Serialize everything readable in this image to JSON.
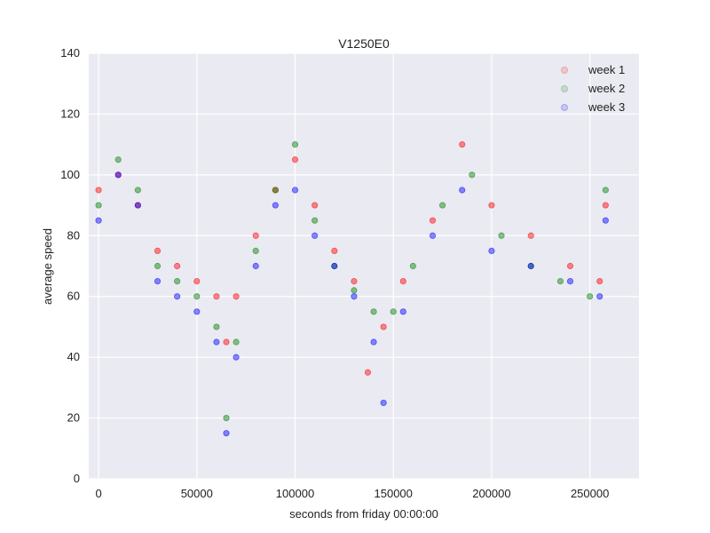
{
  "chart_data": {
    "type": "scatter",
    "title": "V1250E0",
    "xlabel": "seconds from friday 00:00:00",
    "ylabel": "average speed",
    "xlim": [
      -5000,
      275000
    ],
    "ylim": [
      0,
      140
    ],
    "x_ticks": [
      0,
      50000,
      100000,
      150000,
      200000,
      250000
    ],
    "y_ticks": [
      0,
      20,
      40,
      60,
      80,
      100,
      120,
      140
    ],
    "grid": true,
    "legend_position": "top-right",
    "series": [
      {
        "name": "week 1",
        "color": "#ff0000",
        "x": [
          0,
          10000,
          20000,
          30000,
          40000,
          50000,
          60000,
          65000,
          70000,
          80000,
          90000,
          100000,
          110000,
          120000,
          130000,
          137000,
          145000,
          155000,
          170000,
          185000,
          200000,
          220000,
          240000,
          255000,
          258000
        ],
        "y": [
          95,
          100,
          90,
          75,
          70,
          65,
          60,
          45,
          60,
          80,
          95,
          105,
          90,
          75,
          65,
          35,
          50,
          65,
          85,
          110,
          90,
          80,
          70,
          65,
          90
        ]
      },
      {
        "name": "week 2",
        "color": "#008000",
        "x": [
          0,
          10000,
          20000,
          30000,
          40000,
          50000,
          60000,
          65000,
          70000,
          80000,
          90000,
          100000,
          110000,
          120000,
          130000,
          140000,
          150000,
          160000,
          175000,
          190000,
          205000,
          220000,
          235000,
          250000,
          258000
        ],
        "y": [
          90,
          105,
          95,
          70,
          65,
          60,
          50,
          20,
          45,
          75,
          95,
          110,
          85,
          70,
          62,
          55,
          55,
          70,
          90,
          100,
          80,
          70,
          65,
          60,
          95
        ]
      },
      {
        "name": "week 3",
        "color": "#0000ff",
        "x": [
          0,
          10000,
          20000,
          30000,
          40000,
          50000,
          60000,
          65000,
          70000,
          80000,
          90000,
          100000,
          110000,
          120000,
          130000,
          140000,
          145000,
          155000,
          170000,
          185000,
          200000,
          220000,
          240000,
          255000,
          258000
        ],
        "y": [
          85,
          100,
          90,
          65,
          60,
          55,
          45,
          15,
          40,
          70,
          90,
          95,
          80,
          70,
          60,
          45,
          25,
          55,
          80,
          95,
          75,
          70,
          65,
          60,
          85
        ]
      }
    ]
  }
}
